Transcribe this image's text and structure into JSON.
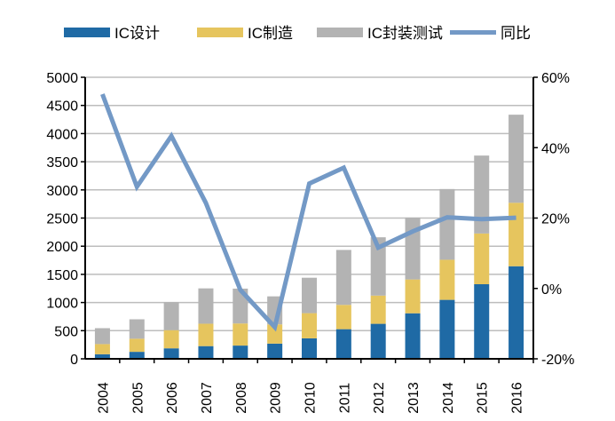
{
  "chart_data": {
    "type": "bar",
    "stacked": true,
    "categories": [
      "2004",
      "2005",
      "2006",
      "2007",
      "2008",
      "2009",
      "2010",
      "2011",
      "2012",
      "2013",
      "2014",
      "2015",
      "2016"
    ],
    "series": [
      {
        "name": "IC设计",
        "type": "bar",
        "axis": "left",
        "color": "#1f6aa5",
        "values": [
          81.5,
          124.3,
          186.2,
          225.7,
          235.2,
          269.9,
          363.9,
          526.4,
          621.7,
          808.8,
          1047.4,
          1325,
          1644.3
        ]
      },
      {
        "name": "IC制造",
        "type": "bar",
        "axis": "left",
        "color": "#e6c55e",
        "values": [
          180.4,
          232.9,
          323.5,
          397.9,
          392.7,
          341.1,
          447.1,
          431.6,
          501.1,
          600.9,
          712.1,
          900.8,
          1126.9
        ]
      },
      {
        "name": "IC封装测试",
        "type": "bar",
        "axis": "left",
        "color": "#b3b3b3",
        "values": [
          282.6,
          344.9,
          496.6,
          627.7,
          618.9,
          498.2,
          629.2,
          975.7,
          1035.7,
          1098.8,
          1255.9,
          1384,
          1564.3
        ]
      },
      {
        "name": "同比",
        "type": "line",
        "axis": "right",
        "color": "#7399c6",
        "values": [
          55.2,
          28.9,
          43.3,
          24.3,
          -0.4,
          -11.0,
          29.8,
          34.3,
          11.6,
          16.2,
          20.2,
          19.7,
          20.1
        ]
      }
    ],
    "ylim": [
      0,
      5000
    ],
    "yticks": [
      "0",
      "500",
      "1000",
      "1500",
      "2000",
      "2500",
      "3000",
      "3500",
      "4000",
      "4500",
      "5000"
    ],
    "y2lim": [
      -20,
      60
    ],
    "y2ticks": [
      "-20%",
      "0%",
      "20%",
      "40%",
      "60%"
    ],
    "grid": true,
    "legend_position": "top"
  }
}
